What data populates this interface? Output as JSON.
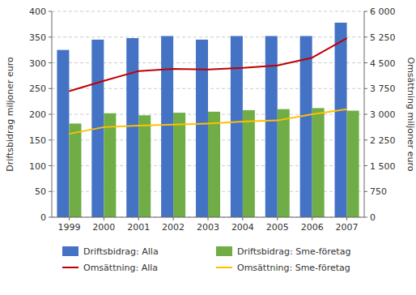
{
  "chart_data": {
    "type": "bar",
    "categories": [
      "1999",
      "2000",
      "2001",
      "2002",
      "2003",
      "2004",
      "2005",
      "2006",
      "2007"
    ],
    "series": [
      {
        "name": "Driftsbidrag: Alla",
        "type": "bar",
        "color": "#4472C4",
        "values": [
          325,
          345,
          348,
          352,
          345,
          352,
          352,
          352,
          378
        ]
      },
      {
        "name": "Driftsbidrag: Sme-företag",
        "type": "bar",
        "color": "#70AD47",
        "values": [
          182,
          202,
          198,
          203,
          205,
          208,
          210,
          212,
          207
        ]
      },
      {
        "name": "Omsättning: Alla",
        "type": "line",
        "axis": "y2",
        "color": "#C00000",
        "values": [
          3675,
          3975,
          4260,
          4320,
          4305,
          4350,
          4425,
          4650,
          5220
        ]
      },
      {
        "name": "Omsättning: Sme-företag",
        "type": "line",
        "axis": "y2",
        "color": "#FFC000",
        "values": [
          2430,
          2625,
          2670,
          2700,
          2730,
          2790,
          2820,
          3000,
          3150
        ]
      }
    ],
    "ylabel": "Driftsbidrag miljoner euro",
    "y2label": "Omsättning miljoner euro",
    "ylim": [
      0,
      400
    ],
    "yticks": [
      0,
      50,
      100,
      150,
      200,
      250,
      300,
      350,
      400
    ],
    "y2lim": [
      0,
      6000
    ],
    "y2ticks": [
      0,
      750,
      {
        "value": 1500,
        "label": "1 500"
      },
      {
        "value": 2250,
        "label": "2 250"
      },
      {
        "value": 3000,
        "label": "3 000"
      },
      {
        "value": 3750,
        "label": "3 750"
      },
      {
        "value": 4500,
        "label": "4 500"
      },
      {
        "value": 5250,
        "label": "5 250"
      },
      {
        "value": 6000,
        "label": "6 000"
      }
    ],
    "grid": true,
    "legend": "bottom"
  }
}
